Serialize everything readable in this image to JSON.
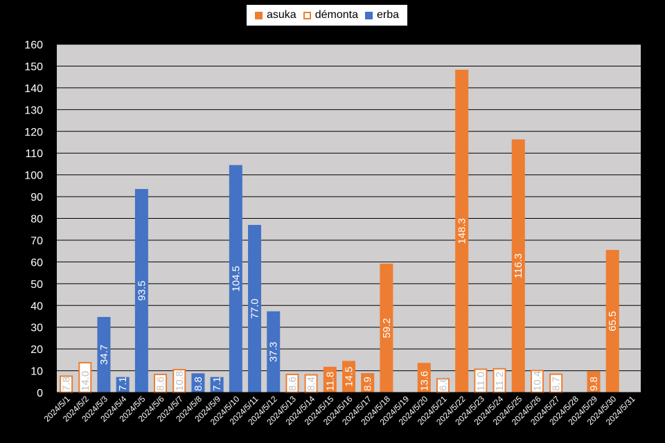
{
  "chart_data": {
    "type": "bar",
    "title": "",
    "xlabel": "",
    "ylabel": "",
    "ylim": [
      0,
      160
    ],
    "yticks": [
      0,
      10,
      20,
      30,
      40,
      50,
      60,
      70,
      80,
      90,
      100,
      110,
      120,
      130,
      140,
      150,
      160
    ],
    "grid": true,
    "legend_position": "top-center",
    "background": "#000000",
    "plot_background": "#d0cece",
    "categories": [
      "2024/5/1",
      "2024/5/2",
      "2024/5/3",
      "2024/5/4",
      "2024/5/5",
      "2024/5/6",
      "2024/5/7",
      "2024/5/8",
      "2024/5/9",
      "2024/5/10",
      "2024/5/11",
      "2024/5/12",
      "2024/5/13",
      "2024/5/14",
      "2024/5/15",
      "2024/5/16",
      "2024/5/17",
      "2024/5/18",
      "2024/5/19",
      "2024/5/20",
      "2024/5/21",
      "2024/5/22",
      "2024/5/23",
      "2024/5/24",
      "2024/5/25",
      "2024/5/26",
      "2024/5/27",
      "2024/5/28",
      "2024/5/29",
      "2024/5/30",
      "2024/5/31"
    ],
    "series": [
      {
        "name": "asuka",
        "style": "filled",
        "color": "#ed7d31"
      },
      {
        "name": "démonta",
        "style": "outline",
        "color": "#ed7d31"
      },
      {
        "name": "erba",
        "style": "filled",
        "color": "#4472c4"
      }
    ],
    "values": [
      7.8,
      14.0,
      34.7,
      7.1,
      93.5,
      8.6,
      10.8,
      8.8,
      7.1,
      104.5,
      77.0,
      37.3,
      8.6,
      8.4,
      11.8,
      14.5,
      8.9,
      59.2,
      null,
      13.6,
      6.6,
      148.3,
      11.0,
      11.2,
      116.3,
      10.4,
      8.7,
      null,
      9.8,
      65.5,
      null
    ],
    "value_series": [
      "démonta",
      "démonta",
      "erba",
      "erba",
      "erba",
      "démonta",
      "démonta",
      "erba",
      "erba",
      "erba",
      "erba",
      "erba",
      "démonta",
      "démonta",
      "asuka",
      "asuka",
      "asuka",
      "asuka",
      null,
      "asuka",
      "démonta",
      "asuka",
      "démonta",
      "démonta",
      "asuka",
      "démonta",
      "démonta",
      null,
      "asuka",
      "asuka",
      null
    ],
    "data_labels": [
      "7.8",
      "14.0",
      "34.7",
      "7.1",
      "93.5",
      "8.6",
      "10.8",
      "8.8",
      "7.1",
      "104.5",
      "77.0",
      "37.3",
      "8.6",
      "8.4",
      "11.8",
      "14.5",
      "8.9",
      "59.2",
      "",
      "13.6",
      "6.6",
      "148.3",
      "11.0",
      "11.2",
      "116.3",
      "10.4",
      "8.7",
      "",
      "9.8",
      "65.5",
      ""
    ]
  }
}
